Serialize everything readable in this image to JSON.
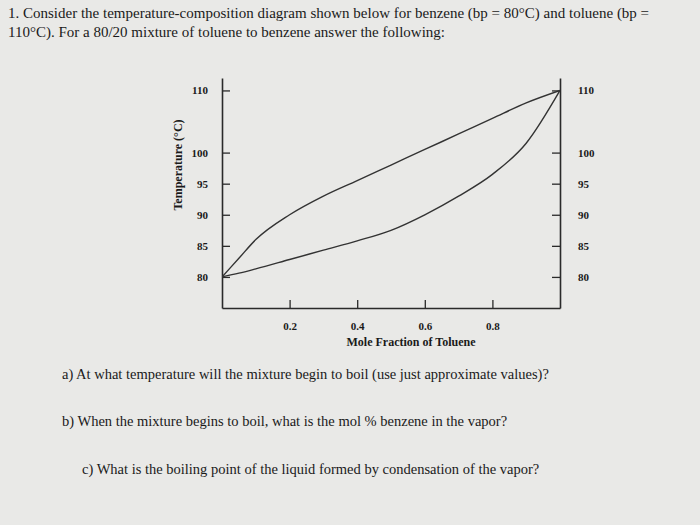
{
  "chart_data": {
    "type": "line",
    "title": "1. Consider the temperature-composition diagram shown below for benzene (bp = 80°C) and toluene (bp = 110°C). For a 80/20 mixture of toluene to benzene answer the following:",
    "x_label": "Mole Fraction of Toluene",
    "y_label": "Temperature (°C)",
    "annotations": [
      "a) At what temperature will the mixture begin to boil (use just approximate values)?",
      "b) When the mixture begins to boil, what is the mol % benzene in the vapor?",
      "c) What is the boiling point of the liquid formed by condensation of the vapor?"
    ],
    "x": [
      0,
      0.05,
      0.1,
      0.2,
      0.3,
      0.4,
      0.5,
      0.6,
      0.7,
      0.8,
      0.9,
      1
    ],
    "series": [
      {
        "values": [
          80,
          80.6,
          81.3,
          82.8,
          84.3,
          85.8,
          87.5,
          90,
          93,
          96.5,
          101.5,
          110
        ],
        "color": "#333333"
      },
      {
        "values": [
          80,
          83,
          86,
          90,
          93,
          95.5,
          98,
          100.5,
          103,
          105.5,
          108,
          110
        ],
        "color": "#333333"
      }
    ],
    "xlim": [
      0,
      1
    ],
    "ylim": [
      75,
      112
    ],
    "xticks": [
      0.2,
      0.4,
      0.6,
      0.8
    ],
    "yticks": [
      80,
      85,
      90,
      95,
      100,
      110
    ]
  }
}
